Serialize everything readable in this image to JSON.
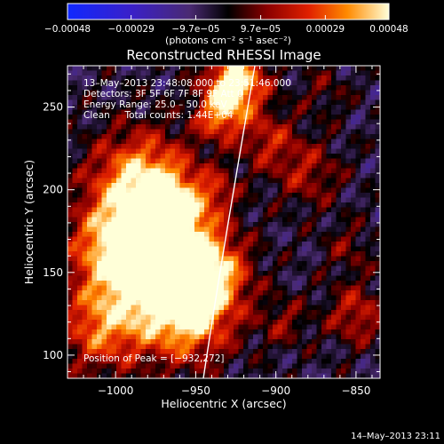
{
  "chart_data": {
    "type": "heatmap",
    "title": "Reconstructed RHESSI Image",
    "xlabel": "Heliocentric X (arcsec)",
    "ylabel": "Heliocentric Y (arcsec)",
    "xlim": [
      -1030,
      -835
    ],
    "ylim": [
      86,
      275
    ],
    "xticks": [
      -1000,
      -950,
      -900,
      -850
    ],
    "xtick_labels": [
      "−1000",
      "−950",
      "−900",
      "−850"
    ],
    "yticks": [
      100,
      150,
      200,
      250
    ],
    "ytick_labels": [
      "100",
      "150",
      "200",
      "250"
    ],
    "colorbar": {
      "ticks": [
        -0.00048,
        -0.00029,
        -9.7e-05,
        9.7e-05,
        0.00029,
        0.00048
      ],
      "tick_labels": [
        "−0.00048",
        "−0.00029",
        "−9.7e−05",
        "9.7e−05",
        "0.00029",
        "0.00048"
      ],
      "range": [
        -0.00048,
        0.00048
      ],
      "unit_label": "(photons cm⁻² s⁻¹ asec⁻²)"
    },
    "annotations": [
      "13–May–2013 23:48:08.000 to 23:51:46.000",
      "Detectors: 3F 5F 6F 7F 8F 9F Att 0",
      "Energy Range: 25.0 – 50.0 keV",
      "Clean     Total counts: 1.44E+04"
    ],
    "peak_label": "Position of Peak = [−932,272]",
    "peak": [
      -932,
      272
    ],
    "grid": false,
    "legend": "none"
  },
  "footer": {
    "timestamp": "14–May–2013 23:11"
  },
  "colors": {
    "background": "#000000",
    "text": "#ffffff",
    "limb_line": "#ffffff"
  }
}
